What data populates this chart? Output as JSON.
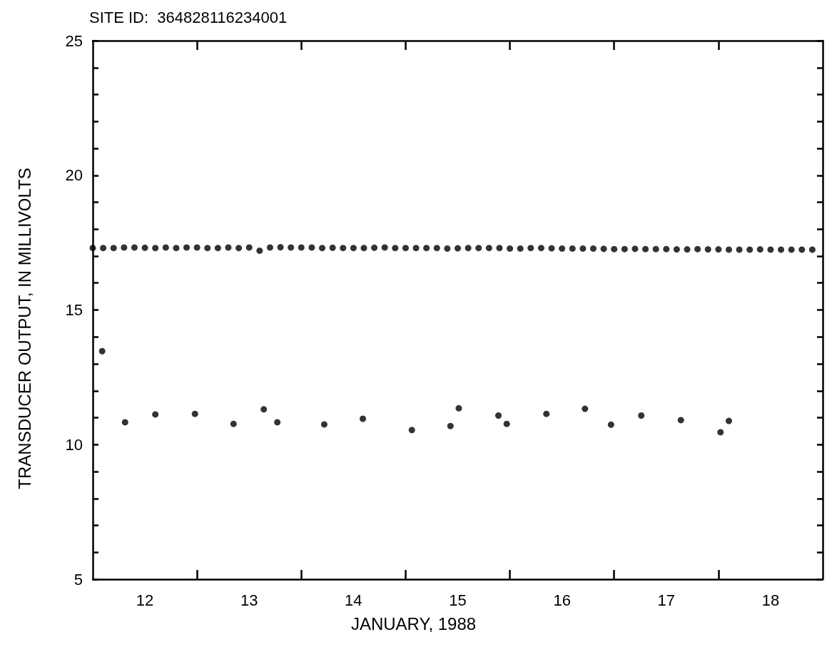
{
  "chart_data": {
    "type": "scatter",
    "title": "SITE ID:  364828116234001",
    "xlabel": "JANUARY, 1988",
    "ylabel": "TRANSDUCER OUTPUT, IN MILLIVOLTS",
    "xlim": [
      12,
      19
    ],
    "ylim": [
      5,
      25
    ],
    "xticks": [
      {
        "value": 12.5,
        "label": "12"
      },
      {
        "value": 13,
        "label": null
      },
      {
        "value": 13.5,
        "label": "13"
      },
      {
        "value": 14,
        "label": null
      },
      {
        "value": 14.5,
        "label": "14"
      },
      {
        "value": 15,
        "label": null
      },
      {
        "value": 15.5,
        "label": "15"
      },
      {
        "value": 16,
        "label": null
      },
      {
        "value": 16.5,
        "label": "16"
      },
      {
        "value": 17,
        "label": null
      },
      {
        "value": 17.5,
        "label": "17"
      },
      {
        "value": 18,
        "label": null
      },
      {
        "value": 18.5,
        "label": "18"
      }
    ],
    "yticks": [
      5,
      {
        "value": 6,
        "label": null
      },
      {
        "value": 7,
        "label": null
      },
      {
        "value": 8,
        "label": null
      },
      {
        "value": 9,
        "label": null
      },
      10,
      {
        "value": 11,
        "label": null
      },
      {
        "value": 12,
        "label": null
      },
      {
        "value": 13,
        "label": null
      },
      {
        "value": 14,
        "label": null
      },
      15,
      {
        "value": 16,
        "label": null
      },
      {
        "value": 17,
        "label": null
      },
      {
        "value": 18,
        "label": null
      },
      {
        "value": 19,
        "label": null
      },
      20,
      {
        "value": 21,
        "label": null
      },
      {
        "value": 22,
        "label": null
      },
      {
        "value": 23,
        "label": null
      },
      {
        "value": 24,
        "label": null
      },
      25
    ],
    "grid": false,
    "marker": "circle",
    "series": [
      {
        "color": "#000000",
        "x": [
          12.0,
          12.1,
          12.2,
          12.3,
          12.4,
          12.5,
          12.6,
          12.7,
          12.8,
          12.9,
          13.0,
          13.1,
          13.2,
          13.3,
          13.4,
          13.5,
          13.6,
          13.7,
          13.8,
          13.9,
          14.0,
          14.1,
          14.2,
          14.3,
          14.4,
          14.5,
          14.6,
          14.7,
          14.8,
          14.9,
          15.0,
          15.1,
          15.2,
          15.3,
          15.4,
          15.5,
          15.6,
          15.7,
          15.8,
          15.9,
          16.0,
          16.1,
          16.2,
          16.3,
          16.4,
          16.5,
          16.6,
          16.7,
          16.8,
          16.9,
          17.0,
          17.1,
          17.2,
          17.3,
          17.4,
          17.5,
          17.6,
          17.7,
          17.8,
          17.9,
          18.0,
          18.1,
          18.2,
          18.3,
          18.4,
          18.5,
          18.6,
          18.7,
          18.8,
          18.9
        ],
        "values": [
          17.3,
          17.3,
          17.3,
          17.32,
          17.32,
          17.31,
          17.3,
          17.32,
          17.3,
          17.32,
          17.32,
          17.3,
          17.3,
          17.32,
          17.3,
          17.32,
          17.2,
          17.32,
          17.33,
          17.32,
          17.32,
          17.32,
          17.3,
          17.31,
          17.3,
          17.3,
          17.3,
          17.31,
          17.32,
          17.3,
          17.3,
          17.3,
          17.3,
          17.3,
          17.28,
          17.29,
          17.3,
          17.3,
          17.3,
          17.3,
          17.28,
          17.28,
          17.3,
          17.3,
          17.29,
          17.28,
          17.28,
          17.28,
          17.28,
          17.27,
          17.26,
          17.26,
          17.27,
          17.26,
          17.26,
          17.26,
          17.25,
          17.25,
          17.26,
          17.25,
          17.25,
          17.24,
          17.24,
          17.24,
          17.25,
          17.24,
          17.24,
          17.24,
          17.24,
          17.24
        ]
      },
      {
        "color": "#000000",
        "x": [
          12.09,
          12.31,
          12.6,
          12.98,
          13.35,
          13.64,
          13.77,
          14.22,
          14.59,
          15.06,
          15.43,
          15.51,
          15.89,
          15.97,
          16.35,
          16.72,
          16.97,
          17.26,
          17.64,
          18.02,
          18.1
        ],
        "values": [
          13.47,
          10.83,
          11.12,
          11.14,
          10.77,
          11.31,
          10.83,
          10.75,
          10.96,
          10.54,
          10.69,
          11.35,
          11.08,
          10.77,
          11.14,
          11.33,
          10.74,
          11.08,
          10.91,
          10.46,
          10.88
        ]
      }
    ]
  }
}
